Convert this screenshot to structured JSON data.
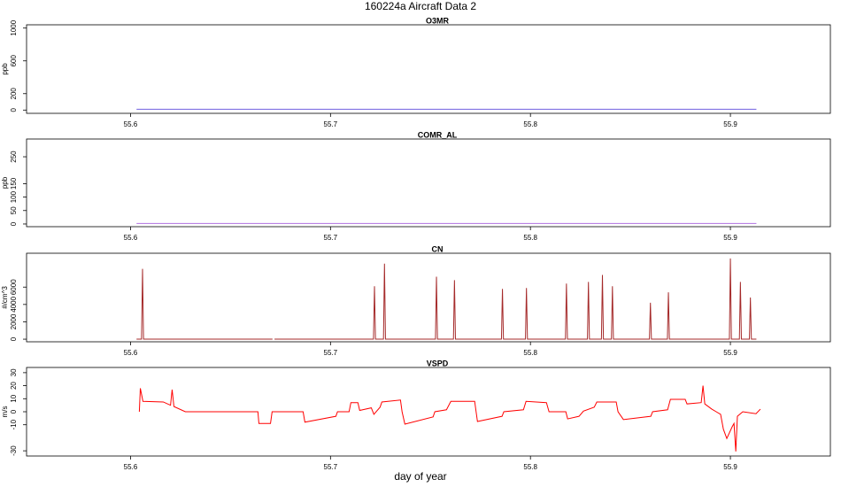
{
  "title": "160224a   Aircraft Data 2",
  "xlabel": "day of year",
  "chart_data": [
    {
      "type": "line",
      "title": "O3MR",
      "ylabel": "ppb",
      "color": "#7060e0",
      "xlim": [
        55.548,
        55.95
      ],
      "xticks": [
        55.6,
        55.7,
        55.8,
        55.9
      ],
      "ylim": [
        -40,
        1040
      ],
      "yticks": [
        0,
        200,
        600,
        1000
      ],
      "x": [
        55.603,
        55.7,
        55.8,
        55.913
      ],
      "values": [
        10,
        10,
        10,
        10
      ]
    },
    {
      "type": "line",
      "title": "COMR_AL",
      "ylabel": "ppb",
      "color": "#b070e0",
      "xlim": [
        55.548,
        55.95
      ],
      "xticks": [
        55.6,
        55.7,
        55.8,
        55.9
      ],
      "ylim": [
        -10,
        316
      ],
      "yticks": [
        0,
        50,
        100,
        150,
        250
      ],
      "x": [
        55.603,
        55.7,
        55.8,
        55.913
      ],
      "values": [
        2,
        2,
        2,
        2
      ]
    },
    {
      "type": "line",
      "title": "CN",
      "ylabel": "#/cm^3",
      "color": "#a52a2a",
      "xlim": [
        55.548,
        55.95
      ],
      "xticks": [
        55.6,
        55.7,
        55.8,
        55.9
      ],
      "ylim": [
        -300,
        9900
      ],
      "yticks": [
        0,
        2000,
        4000,
        6000
      ],
      "x": [
        55.603,
        55.6055,
        55.606,
        55.6065,
        55.671,
        55.6715,
        55.672,
        55.7215,
        55.722,
        55.7225,
        55.7265,
        55.727,
        55.7275,
        55.7525,
        55.753,
        55.7535,
        55.7615,
        55.762,
        55.7625,
        55.7855,
        55.786,
        55.7865,
        55.7975,
        55.798,
        55.7985,
        55.8175,
        55.818,
        55.8185,
        55.8285,
        55.829,
        55.8295,
        55.8355,
        55.836,
        55.8365,
        55.8405,
        55.841,
        55.8415,
        55.8595,
        55.86,
        55.8605,
        55.8685,
        55.869,
        55.8695,
        55.8995,
        55.9,
        55.9005,
        55.9045,
        55.905,
        55.9055,
        55.9095,
        55.91,
        55.9105,
        55.913
      ],
      "values": [
        0,
        0,
        8100,
        0,
        0,
        null,
        0,
        0,
        6100,
        0,
        0,
        8700,
        0,
        0,
        7200,
        0,
        0,
        6800,
        0,
        0,
        5800,
        0,
        0,
        5900,
        0,
        0,
        6400,
        0,
        0,
        6600,
        0,
        0,
        7400,
        0,
        0,
        6100,
        0,
        0,
        4200,
        0,
        0,
        5400,
        0,
        0,
        9300,
        0,
        0,
        6600,
        0,
        0,
        4800,
        0,
        0
      ]
    },
    {
      "type": "line",
      "title": "VSPD",
      "ylabel": "m/s",
      "color": "#ff0000",
      "xlim": [
        55.548,
        55.95
      ],
      "xticks": [
        55.6,
        55.7,
        55.8,
        55.9
      ],
      "ylim": [
        -34,
        34
      ],
      "yticks": [
        -30,
        -10,
        0,
        10,
        20,
        30
      ],
      "x": [
        55.6044,
        55.6049,
        55.6062,
        55.6164,
        55.62,
        55.6208,
        55.6217,
        55.6274,
        55.6637,
        55.6642,
        55.67,
        55.6708,
        55.6863,
        55.6872,
        55.7027,
        55.7035,
        55.7093,
        55.7102,
        55.7137,
        55.7146,
        55.7204,
        55.7217,
        55.7248,
        55.7257,
        55.735,
        55.7358,
        55.7372,
        55.7513,
        55.7522,
        55.758,
        55.7602,
        55.7721,
        55.7735,
        55.7858,
        55.7867,
        55.7965,
        55.7978,
        55.808,
        55.8093,
        55.8177,
        55.8186,
        55.8243,
        55.8265,
        55.8319,
        55.8332,
        55.8429,
        55.8438,
        55.8465,
        55.8602,
        55.8611,
        55.8686,
        55.87,
        55.8774,
        55.8783,
        55.8854,
        55.8863,
        55.8872,
        55.8907,
        55.8929,
        55.8951,
        55.8965,
        55.8982,
        55.9009,
        55.9018,
        55.9027,
        55.9035,
        55.9062,
        55.9128,
        55.915
      ],
      "values": [
        0,
        18,
        8,
        7.5,
        5,
        17,
        4,
        0,
        0,
        -9,
        -9,
        0,
        0,
        -8,
        -3.5,
        0,
        0,
        7,
        7,
        1,
        3,
        -2,
        3.5,
        7.5,
        9,
        0,
        -9.5,
        -4,
        0,
        1.5,
        8,
        8,
        -7.5,
        -3.5,
        0,
        1.5,
        8,
        7,
        0,
        0,
        -5.5,
        -3.5,
        0.5,
        3.5,
        7.5,
        7.5,
        0,
        -6,
        -3.5,
        0,
        1.5,
        9.5,
        9.5,
        6,
        7,
        20,
        6,
        2,
        0,
        -2,
        -13.5,
        -20.5,
        -11.5,
        -9,
        -30.5,
        -3.5,
        0,
        -1.5,
        2
      ]
    }
  ]
}
